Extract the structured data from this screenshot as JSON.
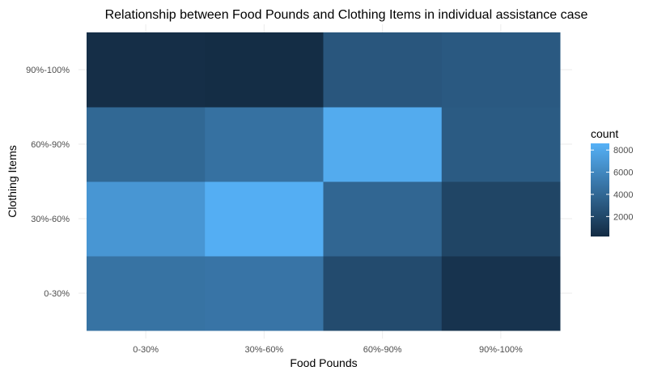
{
  "chart_data": {
    "type": "heatmap",
    "title": "Relationship between Food Pounds and Clothing Items in individual assistance case",
    "xlabel": "Food Pounds",
    "ylabel": "Clothing Items",
    "x_categories": [
      "0-30%",
      "30%-60%",
      "60%-90%",
      "90%-100%"
    ],
    "y_categories": [
      "0-30%",
      "30%-60%",
      "60%-90%",
      "90%-100%"
    ],
    "values": [
      [
        4700,
        4800,
        2200,
        700
      ],
      [
        6900,
        8400,
        3900,
        1800
      ],
      [
        4000,
        4600,
        8200,
        3200
      ],
      [
        400,
        300,
        2900,
        3100
      ]
    ],
    "legend": {
      "title": "count",
      "ticks": [
        2000,
        4000,
        6000,
        8000
      ],
      "tick_labels": [
        "2000",
        "4000",
        "6000",
        "8000"
      ],
      "min": 200,
      "max": 8600,
      "position": "right"
    },
    "color_low": "#132B43",
    "color_high": "#56B1F7",
    "grid": true
  }
}
